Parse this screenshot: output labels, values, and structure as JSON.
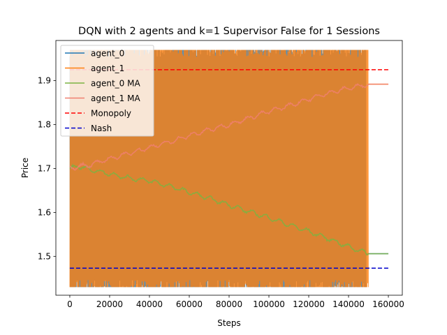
{
  "chart_data": {
    "type": "line",
    "title": "DQN with 2 agents and k=1 Supervisor False for 1 Sessions",
    "xlabel": "Steps",
    "ylabel": "Price",
    "xlim": [
      -7000,
      167000
    ],
    "ylim": [
      1.4115,
      1.9915
    ],
    "x_ticks": [
      0,
      20000,
      40000,
      60000,
      80000,
      100000,
      120000,
      140000,
      160000
    ],
    "y_ticks": [
      1.5,
      1.6,
      1.7,
      1.8,
      1.9
    ],
    "grid": false,
    "legend_position": "top-left",
    "series": [
      {
        "name": "agent_0",
        "color": "#1f77b4",
        "style": "solid",
        "band": {
          "x_start": 0,
          "x_end": 149000,
          "y_low": 1.43,
          "y_high": 1.97
        },
        "converged": {
          "x_start": 149000,
          "x_end": 160000,
          "y": 1.506
        }
      },
      {
        "name": "agent_1",
        "color": "#ff7f0e",
        "style": "solid",
        "band": {
          "x_start": 0,
          "x_end": 150000,
          "y_low": 1.43,
          "y_high": 1.97
        },
        "converged": {
          "x_start": 150000,
          "x_end": 160000,
          "y": 1.892
        }
      },
      {
        "name": "agent_0 MA",
        "color": "#7cb342",
        "style": "solid",
        "x": [
          0,
          5000,
          10000,
          20000,
          30000,
          40000,
          50000,
          60000,
          70000,
          80000,
          90000,
          100000,
          110000,
          120000,
          130000,
          140000,
          150000,
          160000
        ],
        "y": [
          1.7,
          1.705,
          1.698,
          1.688,
          1.678,
          1.672,
          1.66,
          1.646,
          1.632,
          1.617,
          1.602,
          1.588,
          1.572,
          1.557,
          1.54,
          1.522,
          1.506,
          1.506
        ]
      },
      {
        "name": "agent_1 MA",
        "color": "#f08070",
        "style": "solid",
        "x": [
          0,
          5000,
          10000,
          20000,
          30000,
          40000,
          50000,
          60000,
          70000,
          80000,
          90000,
          100000,
          110000,
          120000,
          130000,
          140000,
          150000,
          160000
        ],
        "y": [
          1.7,
          1.705,
          1.708,
          1.722,
          1.735,
          1.748,
          1.76,
          1.775,
          1.788,
          1.8,
          1.815,
          1.83,
          1.843,
          1.858,
          1.872,
          1.883,
          1.892,
          1.892
        ]
      },
      {
        "name": "Monopoly",
        "color": "#ff0000",
        "style": "dashed",
        "x": [
          0,
          160000
        ],
        "y": [
          1.925,
          1.925
        ]
      },
      {
        "name": "Nash",
        "color": "#0000cc",
        "style": "dashed",
        "x": [
          0,
          160000
        ],
        "y": [
          1.473,
          1.473
        ]
      }
    ]
  }
}
